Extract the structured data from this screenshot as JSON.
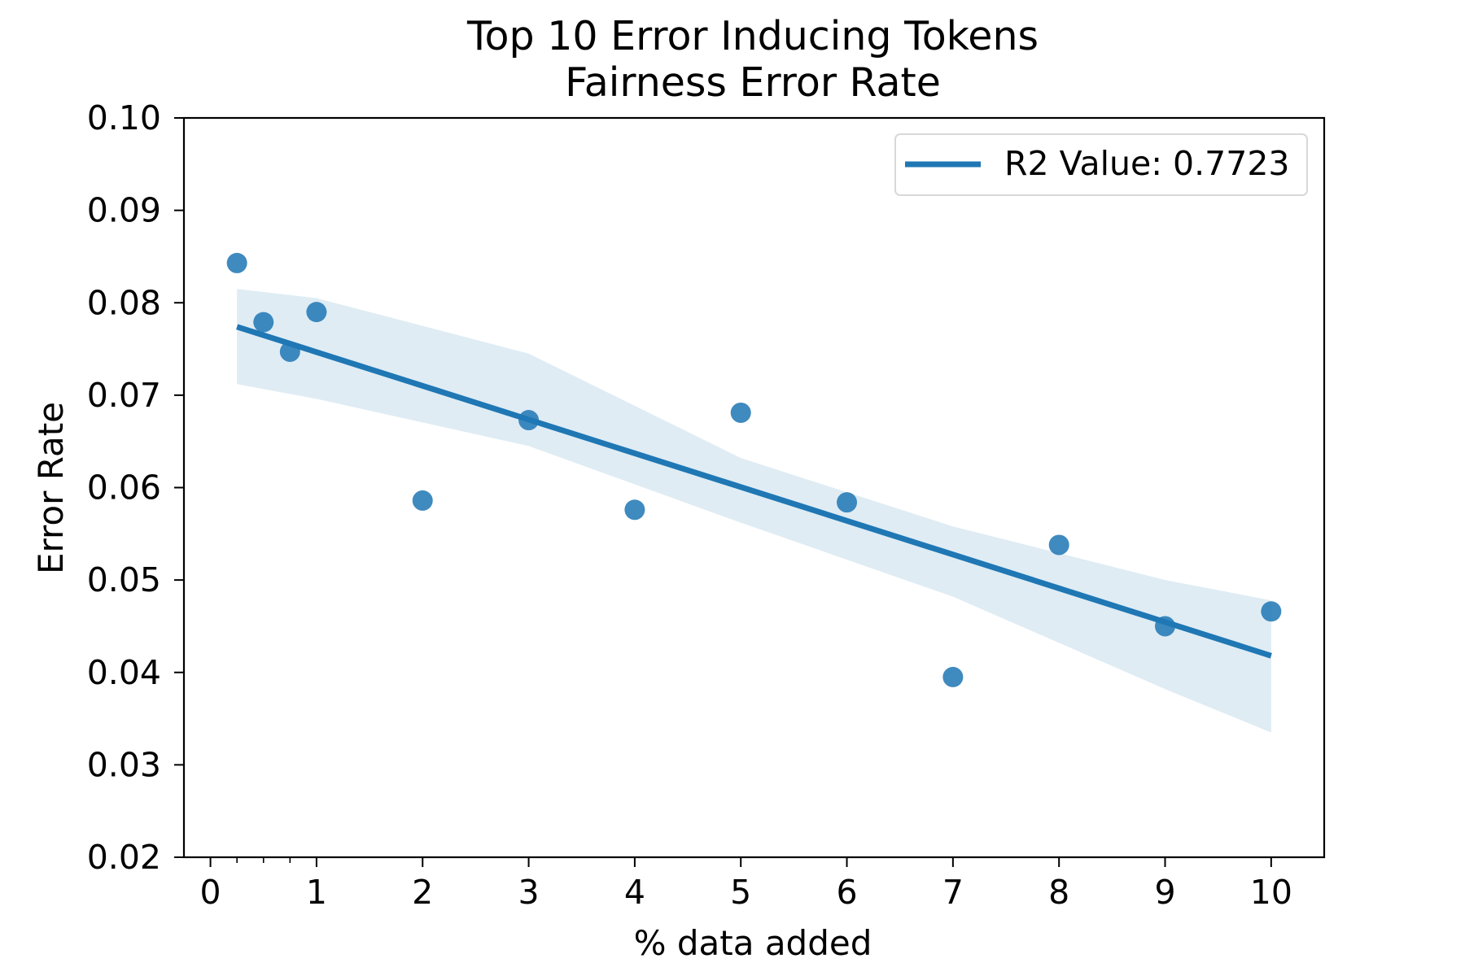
{
  "chart_data": {
    "type": "scatter",
    "title": "Top 10 Error Inducing Tokens",
    "subtitle": "Fairness Error Rate",
    "xlabel": "% data added",
    "ylabel": "Error Rate",
    "xlim": [
      -0.25,
      10.5
    ],
    "ylim": [
      0.02,
      0.1
    ],
    "xticks": [
      0,
      1,
      2,
      3,
      4,
      5,
      6,
      7,
      8,
      9,
      10
    ],
    "xtick_labels": [
      "0",
      "1",
      "2",
      "3",
      "4",
      "5",
      "6",
      "7",
      "8",
      "9",
      "10"
    ],
    "xminor_ticks": [
      0.25,
      0.5,
      0.75
    ],
    "yticks": [
      0.02,
      0.03,
      0.04,
      0.05,
      0.06,
      0.07,
      0.08,
      0.09,
      0.1
    ],
    "ytick_labels": [
      "0.02",
      "0.03",
      "0.04",
      "0.05",
      "0.06",
      "0.07",
      "0.08",
      "0.09",
      "0.10"
    ],
    "grid": false,
    "legend": {
      "position": "top-right",
      "entries": [
        "R2 Value: 0.7723"
      ]
    },
    "points": {
      "x": [
        0.25,
        0.5,
        0.75,
        1,
        2,
        3,
        4,
        5,
        6,
        7,
        8,
        9,
        10
      ],
      "y": [
        0.0843,
        0.0779,
        0.0747,
        0.079,
        0.0586,
        0.0673,
        0.0576,
        0.0681,
        0.0584,
        0.0395,
        0.0538,
        0.045,
        0.0466
      ]
    },
    "regression": {
      "x": [
        0.25,
        10
      ],
      "y": [
        0.0774,
        0.0418
      ]
    },
    "confidence_band": {
      "x": [
        0.25,
        1,
        3,
        5,
        7,
        9,
        10
      ],
      "lower": [
        0.0712,
        0.0696,
        0.0645,
        0.0562,
        0.0482,
        0.0382,
        0.0335
      ],
      "upper": [
        0.0815,
        0.0805,
        0.0745,
        0.0632,
        0.0558,
        0.05,
        0.0478
      ]
    },
    "colors": {
      "point": "#1f77b4",
      "line": "#1f77b4",
      "band": "#1f77b4"
    }
  }
}
